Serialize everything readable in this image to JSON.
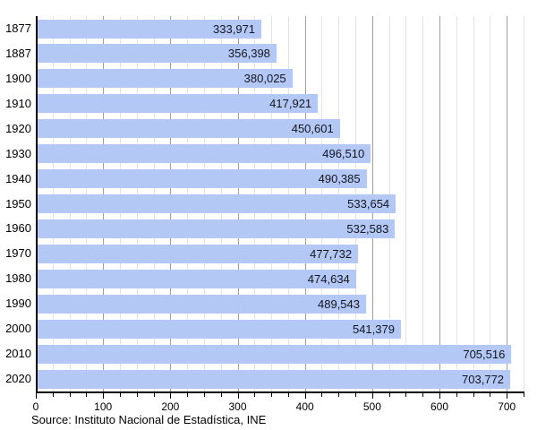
{
  "chart_data": {
    "type": "bar",
    "orientation": "horizontal",
    "title": "",
    "xlabel": "",
    "ylabel": "",
    "categories": [
      "1877",
      "1887",
      "1900",
      "1910",
      "1920",
      "1930",
      "1940",
      "1950",
      "1960",
      "1970",
      "1980",
      "1990",
      "2000",
      "2010",
      "2020"
    ],
    "values": [
      333971,
      356398,
      380025,
      417921,
      450601,
      496510,
      490385,
      533654,
      532583,
      477732,
      474634,
      489543,
      541379,
      705516,
      703772
    ],
    "value_labels": [
      "333,971",
      "356,398",
      "380,025",
      "417,921",
      "450,601",
      "496,510",
      "490,385",
      "533,654",
      "532,583",
      "477,732",
      "474,634",
      "489,543",
      "541,379",
      "705,516",
      "703,772"
    ],
    "value_unit_divisor": 1000,
    "xlim": [
      0,
      725
    ],
    "x_tick_labels": [
      "0",
      "100",
      "200",
      "300",
      "400",
      "500",
      "600",
      "700"
    ],
    "x_major_step": 100,
    "x_minor_step": 25,
    "grid": "vertical: minor every 25, major every 100",
    "legend": "none",
    "source_note": "Source: Instituto Nacional de Estadística, INE",
    "colors": {
      "bar_fill": "#b3c8f4",
      "grid_minor": "#e3e3e3",
      "grid_major": "#9e9e9e",
      "axis": "#000000",
      "value_text": "#141420",
      "tick_text": "#000000"
    }
  }
}
